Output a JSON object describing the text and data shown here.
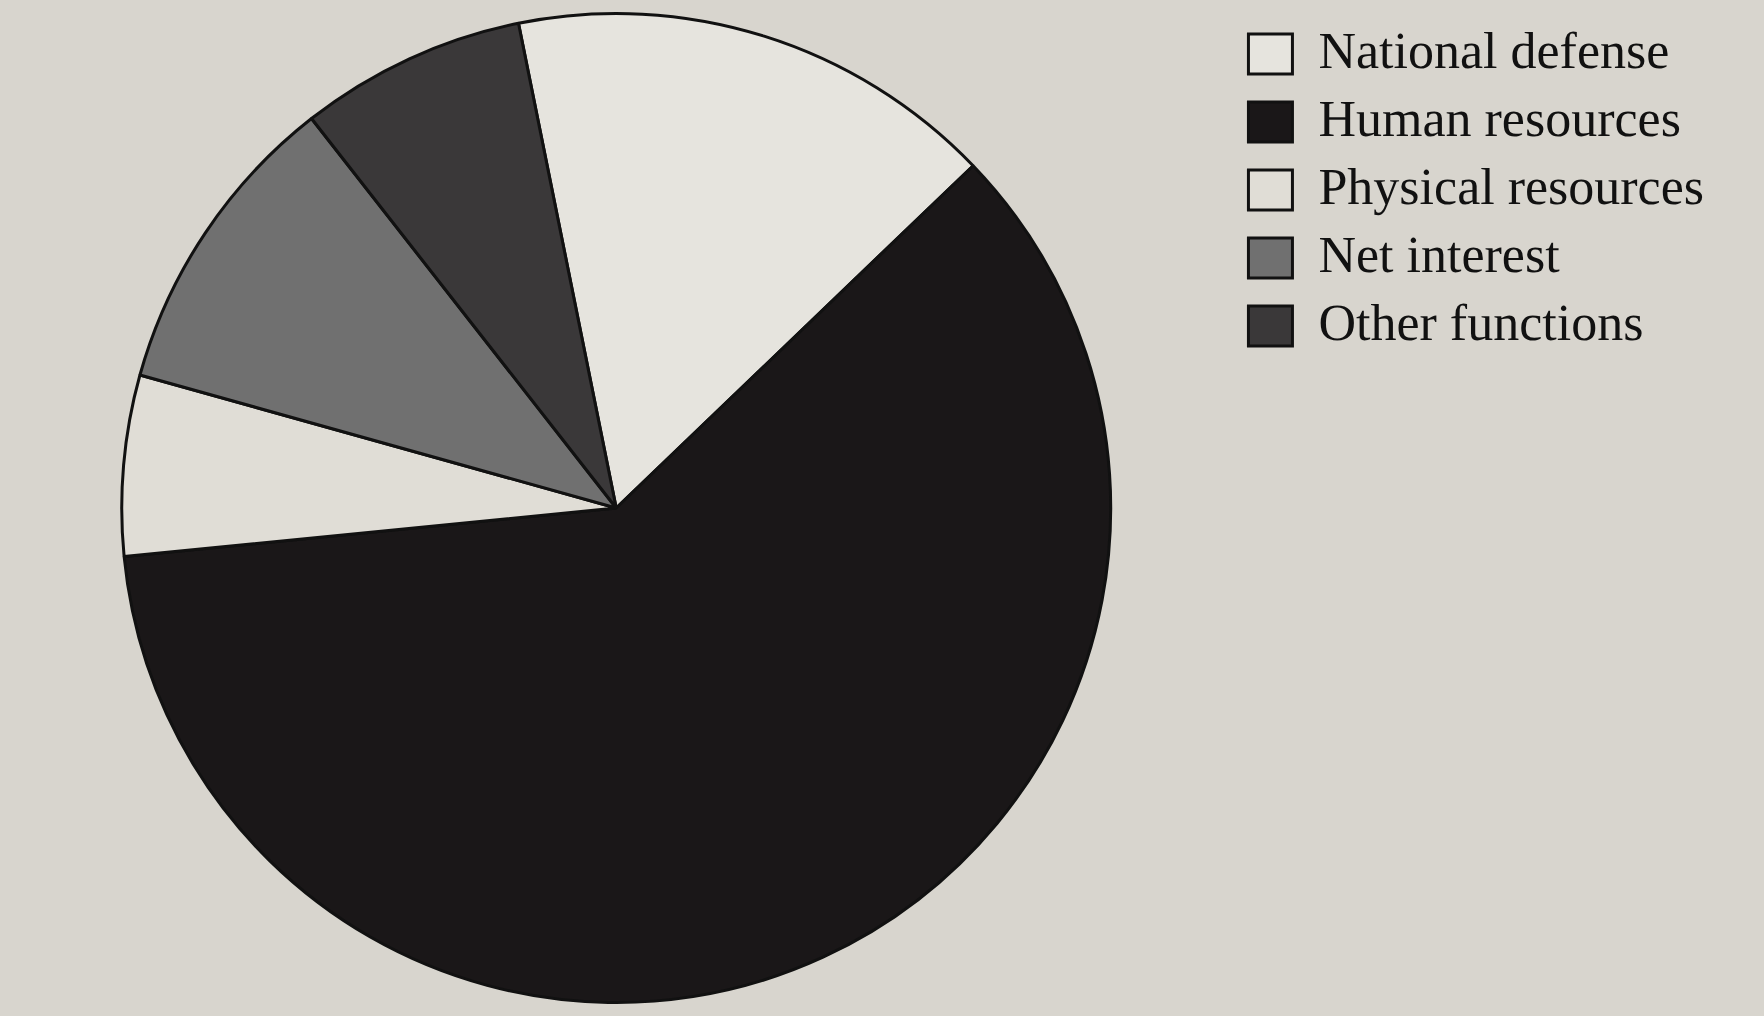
{
  "chart_data": {
    "type": "pie",
    "categories": [
      "National defense",
      "Human resources",
      "Physical resources",
      "Net interest",
      "Other functions"
    ],
    "values": [
      16.0,
      60.6,
      5.9,
      10.1,
      7.4
    ],
    "colors": [
      "#e6e4de",
      "#1a1718",
      "#e0ddd6",
      "#707070",
      "#3a3839"
    ],
    "legend": "top right"
  }
}
